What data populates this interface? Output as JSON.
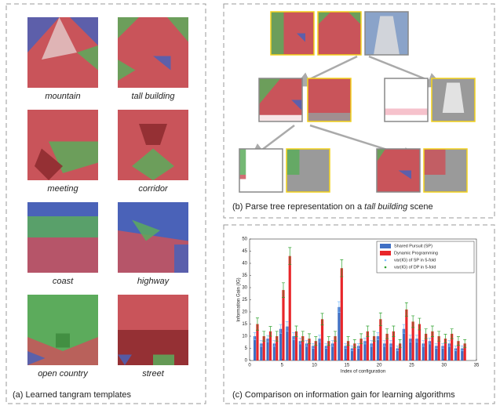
{
  "panel_a": {
    "templates": [
      "mountain",
      "tall building",
      "meeting",
      "corridor",
      "coast",
      "highway",
      "open country",
      "street"
    ],
    "caption": "(a) Learned tangram templates"
  },
  "panel_b": {
    "caption_start": "(b) Parse tree representation on a ",
    "caption_em": "tall building",
    "caption_end": " scene"
  },
  "chart_data": {
    "type": "bar",
    "title": "(c) Comparison on information gain for learning algorithms",
    "x_label": "Index of configuration",
    "y_label": "Information Gain (IG)",
    "x": [
      1,
      2,
      3,
      4,
      5,
      6,
      7,
      8,
      9,
      10,
      11,
      12,
      13,
      14,
      15,
      16,
      17,
      18,
      19,
      20,
      21,
      22,
      23,
      24,
      25,
      26,
      27,
      28,
      29,
      30,
      31,
      32,
      33
    ],
    "series": [
      {
        "name": "Shared Pursuit (SP)",
        "color": "#3f6fc4",
        "values": [
          10,
          7,
          9,
          7,
          13,
          14,
          10,
          8,
          7,
          6,
          9,
          6,
          7,
          22,
          6,
          5,
          6,
          8,
          7,
          10,
          7,
          7,
          5,
          13,
          9,
          9,
          7,
          8,
          6,
          6,
          7,
          5,
          5
        ]
      },
      {
        "name": "Dynamic Programming",
        "color": "#e8262a",
        "values": [
          15,
          10,
          12,
          10,
          29,
          43,
          12,
          10,
          9,
          8,
          17,
          8,
          10,
          38,
          8,
          7,
          9,
          12,
          10,
          17,
          11,
          12,
          7,
          21,
          16,
          15,
          11,
          12,
          10,
          9,
          11,
          8,
          7
        ]
      }
    ],
    "error_series": [
      {
        "name": "var(IG) of SP in 5-fold",
        "color": "#7fbfff",
        "of": 0,
        "values": [
          1.5,
          1.2,
          1.3,
          1.2,
          1.8,
          2,
          1.4,
          1.2,
          1.2,
          1,
          1.4,
          1,
          1.2,
          2.2,
          1,
          1,
          1,
          1.2,
          1.2,
          1.4,
          1.2,
          1.2,
          1,
          1.8,
          1.4,
          1.4,
          1.2,
          1.2,
          1,
          1,
          1.2,
          1,
          1
        ]
      },
      {
        "name": "var(IG) of DP in 5-fold",
        "color": "#2ca02c",
        "of": 1,
        "values": [
          2.5,
          2,
          2,
          2,
          3,
          3.5,
          2.2,
          2,
          2,
          1.8,
          2.4,
          1.8,
          2,
          3.5,
          1.8,
          1.6,
          2,
          2.2,
          2,
          2.6,
          2,
          2.2,
          1.6,
          2.8,
          2.4,
          2.4,
          2,
          2.2,
          2,
          1.8,
          2,
          1.8,
          1.6
        ]
      }
    ],
    "xlim": [
      0,
      35
    ],
    "xticks": [
      0,
      5,
      10,
      15,
      20,
      25,
      30,
      35
    ],
    "ylim": [
      0,
      50
    ],
    "yticks": [
      0,
      5,
      10,
      15,
      20,
      25,
      30,
      35,
      40,
      45,
      50
    ],
    "legend": "upper right"
  }
}
